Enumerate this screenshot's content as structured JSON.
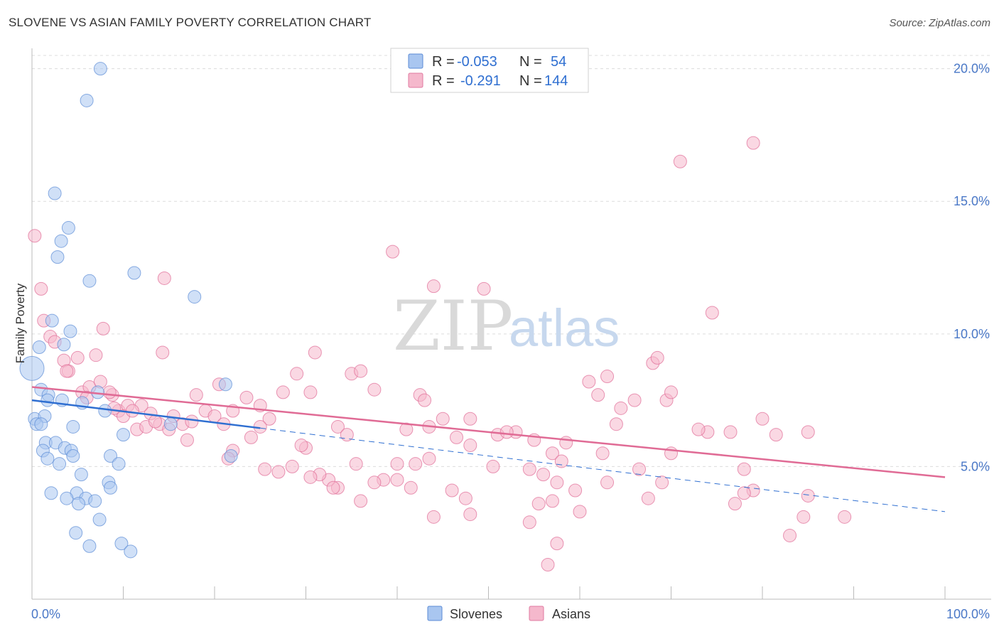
{
  "header": {
    "title": "SLOVENE VS ASIAN FAMILY POVERTY CORRELATION CHART",
    "source": "Source: ZipAtlas.com"
  },
  "watermark": {
    "part1": "ZIP",
    "part2": "atlas"
  },
  "legend": {
    "rows": [
      {
        "r_label": "R =",
        "r_value": "-0.053",
        "n_label": "N =",
        "n_value": "54",
        "fill": "#a9c6f0",
        "stroke": "#5b8bd6"
      },
      {
        "r_label": "R =",
        "r_value": "-0.291",
        "n_label": "N =",
        "n_value": "144",
        "fill": "#f5b8cc",
        "stroke": "#e07aa0"
      }
    ]
  },
  "bottom_legend": [
    {
      "label": "Slovenes",
      "fill": "#a9c6f0",
      "stroke": "#5b8bd6"
    },
    {
      "label": "Asians",
      "fill": "#f5b8cc",
      "stroke": "#e07aa0"
    }
  ],
  "chart_data": {
    "type": "scatter",
    "title": "SLOVENE VS ASIAN FAMILY POVERTY CORRELATION CHART",
    "xlabel": "",
    "ylabel": "Family Poverty",
    "xlim": [
      0,
      100
    ],
    "ylim": [
      0,
      20.5
    ],
    "x_tick_labels": [
      "0.0%",
      "100.0%"
    ],
    "y_ticks": [
      5,
      10,
      15,
      20
    ],
    "y_tick_labels": [
      "5.0%",
      "10.0%",
      "15.0%",
      "20.0%"
    ],
    "grid": true,
    "series": [
      {
        "name": "Slovenes",
        "color": "#5b8bd6",
        "fill": "#a9c6f0",
        "trend": {
          "x0": 0,
          "y0": 7.5,
          "x1": 25,
          "y1": 6.45,
          "dashed_to_x": 100,
          "dashed_to_y": 3.3
        },
        "points": [
          {
            "x": 0.0,
            "y": 8.7,
            "big": true
          },
          {
            "x": 7.5,
            "y": 20.0
          },
          {
            "x": 6.0,
            "y": 18.8
          },
          {
            "x": 2.5,
            "y": 15.3
          },
          {
            "x": 4.0,
            "y": 14.0
          },
          {
            "x": 3.2,
            "y": 13.5
          },
          {
            "x": 2.8,
            "y": 12.9
          },
          {
            "x": 11.2,
            "y": 12.3
          },
          {
            "x": 6.3,
            "y": 12.0
          },
          {
            "x": 17.8,
            "y": 11.4
          },
          {
            "x": 2.2,
            "y": 10.5
          },
          {
            "x": 4.2,
            "y": 10.1
          },
          {
            "x": 3.5,
            "y": 9.6
          },
          {
            "x": 0.8,
            "y": 9.5
          },
          {
            "x": 1.0,
            "y": 7.9
          },
          {
            "x": 1.8,
            "y": 7.7
          },
          {
            "x": 1.7,
            "y": 7.5
          },
          {
            "x": 3.3,
            "y": 7.5
          },
          {
            "x": 5.5,
            "y": 7.4
          },
          {
            "x": 7.2,
            "y": 7.8
          },
          {
            "x": 8.0,
            "y": 7.1
          },
          {
            "x": 21.2,
            "y": 8.1
          },
          {
            "x": 0.3,
            "y": 6.8
          },
          {
            "x": 1.4,
            "y": 6.9
          },
          {
            "x": 0.5,
            "y": 6.6
          },
          {
            "x": 1.0,
            "y": 6.6
          },
          {
            "x": 4.5,
            "y": 6.5
          },
          {
            "x": 10.0,
            "y": 6.2
          },
          {
            "x": 15.2,
            "y": 6.6
          },
          {
            "x": 1.5,
            "y": 5.9
          },
          {
            "x": 2.6,
            "y": 5.9
          },
          {
            "x": 1.2,
            "y": 5.6
          },
          {
            "x": 3.6,
            "y": 5.7
          },
          {
            "x": 4.3,
            "y": 5.6
          },
          {
            "x": 4.5,
            "y": 5.4
          },
          {
            "x": 1.7,
            "y": 5.3
          },
          {
            "x": 3.0,
            "y": 5.1
          },
          {
            "x": 8.6,
            "y": 5.4
          },
          {
            "x": 9.5,
            "y": 5.1
          },
          {
            "x": 21.8,
            "y": 5.4
          },
          {
            "x": 5.4,
            "y": 4.7
          },
          {
            "x": 8.4,
            "y": 4.4
          },
          {
            "x": 8.6,
            "y": 4.2
          },
          {
            "x": 2.1,
            "y": 4.0
          },
          {
            "x": 4.9,
            "y": 4.0
          },
          {
            "x": 3.8,
            "y": 3.8
          },
          {
            "x": 5.9,
            "y": 3.8
          },
          {
            "x": 6.9,
            "y": 3.7
          },
          {
            "x": 5.1,
            "y": 3.6
          },
          {
            "x": 7.4,
            "y": 3.0
          },
          {
            "x": 4.8,
            "y": 2.5
          },
          {
            "x": 6.3,
            "y": 2.0
          },
          {
            "x": 9.8,
            "y": 2.1
          },
          {
            "x": 10.8,
            "y": 1.8
          }
        ]
      },
      {
        "name": "Asians",
        "color": "#e06b95",
        "fill": "#f5b8cc",
        "trend": {
          "x0": 0,
          "y0": 8.0,
          "x1": 100,
          "y1": 4.6
        },
        "points": [
          {
            "x": 0.3,
            "y": 13.7
          },
          {
            "x": 1.0,
            "y": 11.7
          },
          {
            "x": 1.3,
            "y": 10.5
          },
          {
            "x": 2.0,
            "y": 9.9
          },
          {
            "x": 2.5,
            "y": 9.7
          },
          {
            "x": 3.5,
            "y": 9.0
          },
          {
            "x": 4.0,
            "y": 8.6
          },
          {
            "x": 3.8,
            "y": 8.6
          },
          {
            "x": 7.0,
            "y": 9.2
          },
          {
            "x": 7.8,
            "y": 10.2
          },
          {
            "x": 5.0,
            "y": 9.1
          },
          {
            "x": 14.3,
            "y": 9.3
          },
          {
            "x": 5.5,
            "y": 7.8
          },
          {
            "x": 6.3,
            "y": 8.0
          },
          {
            "x": 7.5,
            "y": 8.2
          },
          {
            "x": 8.8,
            "y": 7.7
          },
          {
            "x": 6.0,
            "y": 7.6
          },
          {
            "x": 9.5,
            "y": 7.1
          },
          {
            "x": 10.5,
            "y": 7.3
          },
          {
            "x": 13.0,
            "y": 7.0
          },
          {
            "x": 10.0,
            "y": 6.9
          },
          {
            "x": 11.5,
            "y": 6.4
          },
          {
            "x": 12.5,
            "y": 6.5
          },
          {
            "x": 14.0,
            "y": 6.6
          },
          {
            "x": 15.5,
            "y": 6.9
          },
          {
            "x": 16.5,
            "y": 6.6
          },
          {
            "x": 18.0,
            "y": 7.7
          },
          {
            "x": 17.5,
            "y": 6.7
          },
          {
            "x": 19.0,
            "y": 7.1
          },
          {
            "x": 20.0,
            "y": 6.9
          },
          {
            "x": 22.0,
            "y": 7.1
          },
          {
            "x": 23.5,
            "y": 7.6
          },
          {
            "x": 25.0,
            "y": 7.3
          },
          {
            "x": 26.0,
            "y": 6.8
          },
          {
            "x": 27.5,
            "y": 7.8
          },
          {
            "x": 29.0,
            "y": 8.5
          },
          {
            "x": 30.5,
            "y": 7.8
          },
          {
            "x": 31.0,
            "y": 9.3
          },
          {
            "x": 35.0,
            "y": 8.5
          },
          {
            "x": 36.0,
            "y": 8.6
          },
          {
            "x": 37.5,
            "y": 7.9
          },
          {
            "x": 39.5,
            "y": 13.1
          },
          {
            "x": 42.5,
            "y": 7.7
          },
          {
            "x": 43.0,
            "y": 7.5
          },
          {
            "x": 45.0,
            "y": 6.8
          },
          {
            "x": 33.5,
            "y": 6.5
          },
          {
            "x": 34.5,
            "y": 6.2
          },
          {
            "x": 41.0,
            "y": 6.4
          },
          {
            "x": 43.5,
            "y": 6.5
          },
          {
            "x": 46.5,
            "y": 6.1
          },
          {
            "x": 48.0,
            "y": 5.8
          },
          {
            "x": 51.0,
            "y": 6.2
          },
          {
            "x": 53.0,
            "y": 6.3
          },
          {
            "x": 57.0,
            "y": 5.5
          },
          {
            "x": 58.5,
            "y": 5.9
          },
          {
            "x": 44.0,
            "y": 11.8
          },
          {
            "x": 49.5,
            "y": 11.7
          },
          {
            "x": 61.0,
            "y": 8.2
          },
          {
            "x": 63.0,
            "y": 8.4
          },
          {
            "x": 64.5,
            "y": 7.2
          },
          {
            "x": 62.0,
            "y": 7.7
          },
          {
            "x": 66.0,
            "y": 7.5
          },
          {
            "x": 68.0,
            "y": 8.9
          },
          {
            "x": 68.5,
            "y": 9.1
          },
          {
            "x": 69.5,
            "y": 7.5
          },
          {
            "x": 70.0,
            "y": 7.8
          },
          {
            "x": 74.5,
            "y": 10.8
          },
          {
            "x": 74.0,
            "y": 6.3
          },
          {
            "x": 73.0,
            "y": 6.4
          },
          {
            "x": 80.0,
            "y": 6.8
          },
          {
            "x": 71.0,
            "y": 16.5
          },
          {
            "x": 79.0,
            "y": 17.2
          },
          {
            "x": 76.5,
            "y": 6.3
          },
          {
            "x": 85.0,
            "y": 6.3
          },
          {
            "x": 64.0,
            "y": 6.6
          },
          {
            "x": 48.0,
            "y": 6.8
          },
          {
            "x": 52.0,
            "y": 6.3
          },
          {
            "x": 55.0,
            "y": 6.0
          },
          {
            "x": 58.0,
            "y": 5.2
          },
          {
            "x": 62.5,
            "y": 5.5
          },
          {
            "x": 66.5,
            "y": 4.9
          },
          {
            "x": 70.0,
            "y": 5.5
          },
          {
            "x": 78.0,
            "y": 4.9
          },
          {
            "x": 79.0,
            "y": 4.1
          },
          {
            "x": 78.0,
            "y": 4.0
          },
          {
            "x": 69.0,
            "y": 4.4
          },
          {
            "x": 67.5,
            "y": 3.8
          },
          {
            "x": 77.0,
            "y": 3.6
          },
          {
            "x": 84.5,
            "y": 3.1
          },
          {
            "x": 83.0,
            "y": 2.4
          },
          {
            "x": 59.5,
            "y": 4.1
          },
          {
            "x": 56.0,
            "y": 4.7
          },
          {
            "x": 57.5,
            "y": 4.4
          },
          {
            "x": 54.5,
            "y": 4.9
          },
          {
            "x": 50.5,
            "y": 5.0
          },
          {
            "x": 46.0,
            "y": 4.1
          },
          {
            "x": 47.5,
            "y": 3.8
          },
          {
            "x": 55.5,
            "y": 3.6
          },
          {
            "x": 57.0,
            "y": 3.7
          },
          {
            "x": 60.0,
            "y": 3.3
          },
          {
            "x": 63.0,
            "y": 4.4
          },
          {
            "x": 48.0,
            "y": 3.2
          },
          {
            "x": 54.5,
            "y": 2.9
          },
          {
            "x": 57.5,
            "y": 2.1
          },
          {
            "x": 56.5,
            "y": 1.3
          },
          {
            "x": 43.5,
            "y": 5.3
          },
          {
            "x": 42.0,
            "y": 5.1
          },
          {
            "x": 40.0,
            "y": 5.1
          },
          {
            "x": 38.5,
            "y": 4.5
          },
          {
            "x": 37.5,
            "y": 4.4
          },
          {
            "x": 40.0,
            "y": 4.5
          },
          {
            "x": 41.5,
            "y": 4.2
          },
          {
            "x": 35.5,
            "y": 5.1
          },
          {
            "x": 33.5,
            "y": 4.2
          },
          {
            "x": 32.5,
            "y": 4.5
          },
          {
            "x": 31.5,
            "y": 4.7
          },
          {
            "x": 30.5,
            "y": 4.6
          },
          {
            "x": 28.5,
            "y": 5.0
          },
          {
            "x": 27.0,
            "y": 4.8
          },
          {
            "x": 25.5,
            "y": 4.9
          },
          {
            "x": 24.0,
            "y": 6.1
          },
          {
            "x": 21.0,
            "y": 6.6
          },
          {
            "x": 22.0,
            "y": 5.6
          },
          {
            "x": 21.5,
            "y": 5.3
          },
          {
            "x": 17.0,
            "y": 6.0
          },
          {
            "x": 15.0,
            "y": 6.4
          },
          {
            "x": 13.5,
            "y": 6.7
          },
          {
            "x": 12.0,
            "y": 7.3
          },
          {
            "x": 11.0,
            "y": 7.1
          },
          {
            "x": 9.0,
            "y": 7.2
          },
          {
            "x": 8.5,
            "y": 7.8
          },
          {
            "x": 14.5,
            "y": 12.1
          },
          {
            "x": 30.0,
            "y": 5.7
          },
          {
            "x": 29.5,
            "y": 5.8
          },
          {
            "x": 25.0,
            "y": 6.5
          },
          {
            "x": 20.5,
            "y": 8.1
          },
          {
            "x": 36.0,
            "y": 3.7
          },
          {
            "x": 33.0,
            "y": 4.2
          },
          {
            "x": 44.0,
            "y": 3.1
          },
          {
            "x": 89.0,
            "y": 3.1
          },
          {
            "x": 85.0,
            "y": 3.9
          },
          {
            "x": 81.5,
            "y": 6.2
          }
        ]
      }
    ]
  }
}
